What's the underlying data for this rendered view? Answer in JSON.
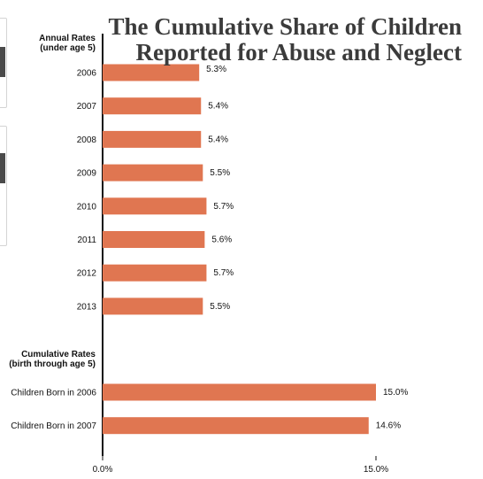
{
  "header": {
    "title_line1": "The Cumulative Share of Children",
    "title_line2": "Reported for Abuse and Neglect"
  },
  "chart_data": {
    "type": "bar",
    "orientation": "horizontal",
    "title": "The Cumulative Share of Children Reported for Abuse and Neglect",
    "xlim": [
      0,
      15
    ],
    "x_ticks": [
      "0.0%",
      "15.0%"
    ],
    "groups": [
      {
        "label_line1": "Annual Rates",
        "label_line2": "(under age 5)",
        "categories": [
          "2006",
          "2007",
          "2008",
          "2009",
          "2010",
          "2011",
          "2012",
          "2013"
        ],
        "values": [
          5.3,
          5.4,
          5.4,
          5.5,
          5.7,
          5.6,
          5.7,
          5.5
        ],
        "labels": [
          "5.3%",
          "5.4%",
          "5.4%",
          "5.5%",
          "5.7%",
          "5.6%",
          "5.7%",
          "5.5%"
        ]
      },
      {
        "label_line1": "Cumulative Rates",
        "label_line2": "(birth through age 5)",
        "categories": [
          "Children Born in 2006",
          "Children Born in 2007"
        ],
        "values": [
          15.0,
          14.6
        ],
        "labels": [
          "15.0%",
          "14.6%"
        ]
      }
    ],
    "bar_color": "#e07651",
    "grid": false
  }
}
